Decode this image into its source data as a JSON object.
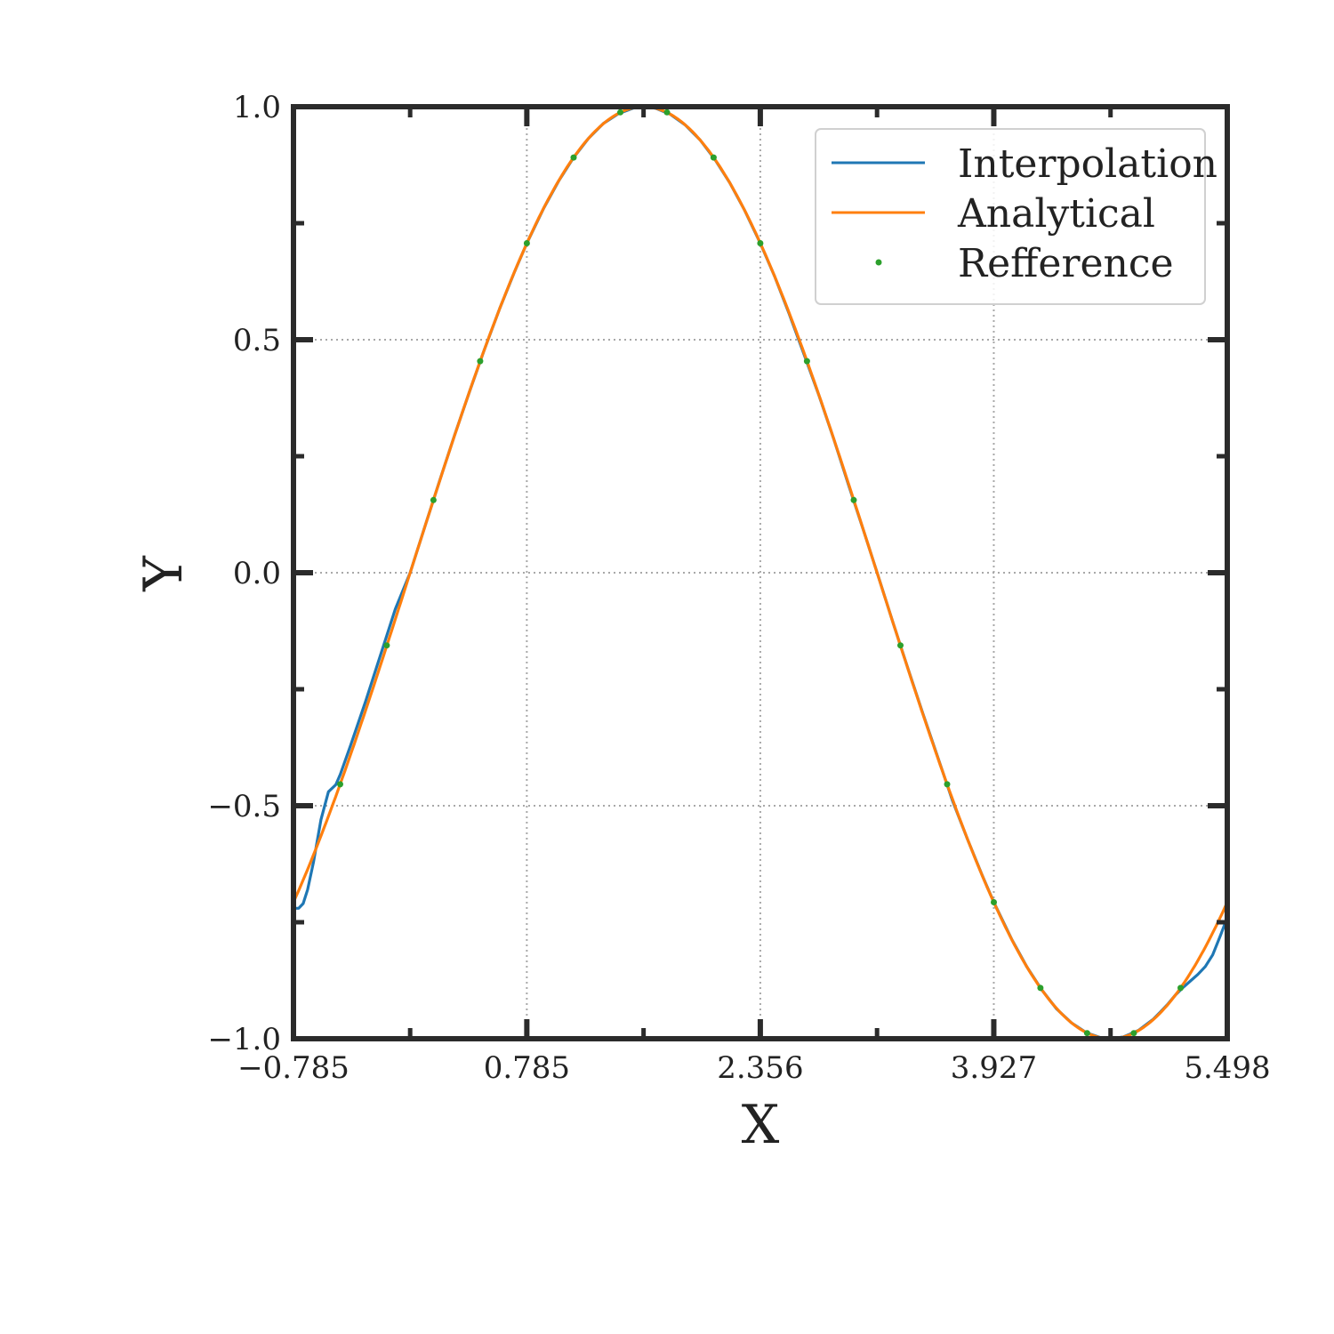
{
  "chart_data": {
    "type": "line",
    "xlabel": "X",
    "ylabel": "Y",
    "xlim": [
      -0.785,
      5.498
    ],
    "ylim": [
      -1.0,
      1.0
    ],
    "xticks": [
      -0.785,
      0.785,
      2.356,
      3.927,
      5.498
    ],
    "xtick_labels": [
      "−0.785",
      "0.785",
      "2.356",
      "3.927",
      "5.498"
    ],
    "yticks": [
      -1.0,
      -0.5,
      0.0,
      0.5,
      1.0
    ],
    "ytick_labels": [
      "−1.0",
      "−0.5",
      "0.0",
      "0.5",
      "1.0"
    ],
    "grid": true,
    "legend_position": "top-right",
    "series": [
      {
        "name": "Interpolation",
        "kind": "line",
        "color": "#1f77b4",
        "x": [
          -0.785,
          -0.75,
          -0.72,
          -0.69,
          -0.65,
          -0.6,
          -0.55,
          -0.5,
          -0.47,
          -0.4,
          -0.3,
          -0.2,
          -0.1,
          0.0,
          0.1,
          0.2,
          0.3,
          0.4,
          0.5,
          0.6,
          0.7,
          0.785,
          0.9,
          1.0,
          1.1,
          1.2,
          1.3,
          1.4,
          1.5,
          1.571,
          1.65,
          1.75,
          1.85,
          1.95,
          2.05,
          2.15,
          2.25,
          2.356,
          2.45,
          2.55,
          2.65,
          2.75,
          2.85,
          2.95,
          3.05,
          3.142,
          3.25,
          3.35,
          3.45,
          3.55,
          3.65,
          3.75,
          3.85,
          3.927,
          4.05,
          4.15,
          4.25,
          4.35,
          4.45,
          4.55,
          4.65,
          4.712,
          4.8,
          4.9,
          5.0,
          5.05,
          5.1,
          5.15,
          5.2,
          5.25,
          5.3,
          5.35,
          5.4,
          5.45,
          5.498
        ],
        "y": [
          -0.72,
          -0.72,
          -0.71,
          -0.68,
          -0.62,
          -0.53,
          -0.47,
          -0.455,
          -0.433,
          -0.37,
          -0.276,
          -0.177,
          -0.078,
          0.0,
          0.1,
          0.199,
          0.296,
          0.389,
          0.479,
          0.565,
          0.644,
          0.707,
          0.783,
          0.841,
          0.891,
          0.932,
          0.964,
          0.985,
          0.997,
          1.0,
          0.997,
          0.984,
          0.961,
          0.929,
          0.887,
          0.837,
          0.778,
          0.707,
          0.638,
          0.556,
          0.469,
          0.381,
          0.287,
          0.188,
          0.091,
          0.0,
          -0.108,
          -0.206,
          -0.302,
          -0.396,
          -0.49,
          -0.572,
          -0.65,
          -0.707,
          -0.788,
          -0.846,
          -0.895,
          -0.936,
          -0.966,
          -0.987,
          -0.998,
          -1.0,
          -0.996,
          -0.982,
          -0.958,
          -0.942,
          -0.925,
          -0.906,
          -0.89,
          -0.876,
          -0.862,
          -0.845,
          -0.82,
          -0.78,
          -0.74
        ]
      },
      {
        "name": "Analytical",
        "kind": "line",
        "color": "#ff7f0e",
        "function": "sin"
      },
      {
        "name": "Refference",
        "kind": "points",
        "color": "#2ca02c",
        "x": [
          -0.471,
          -0.157,
          0.157,
          0.471,
          0.785,
          1.1,
          1.414,
          1.728,
          2.042,
          2.356,
          2.67,
          2.985,
          3.299,
          3.613,
          3.927,
          4.241,
          4.555,
          4.869,
          5.184
        ],
        "y": [
          -0.454,
          -0.156,
          0.156,
          0.454,
          0.707,
          0.891,
          0.988,
          0.988,
          0.891,
          0.707,
          0.454,
          0.156,
          -0.156,
          -0.454,
          -0.707,
          -0.891,
          -0.988,
          -0.988,
          -0.891
        ]
      }
    ]
  }
}
